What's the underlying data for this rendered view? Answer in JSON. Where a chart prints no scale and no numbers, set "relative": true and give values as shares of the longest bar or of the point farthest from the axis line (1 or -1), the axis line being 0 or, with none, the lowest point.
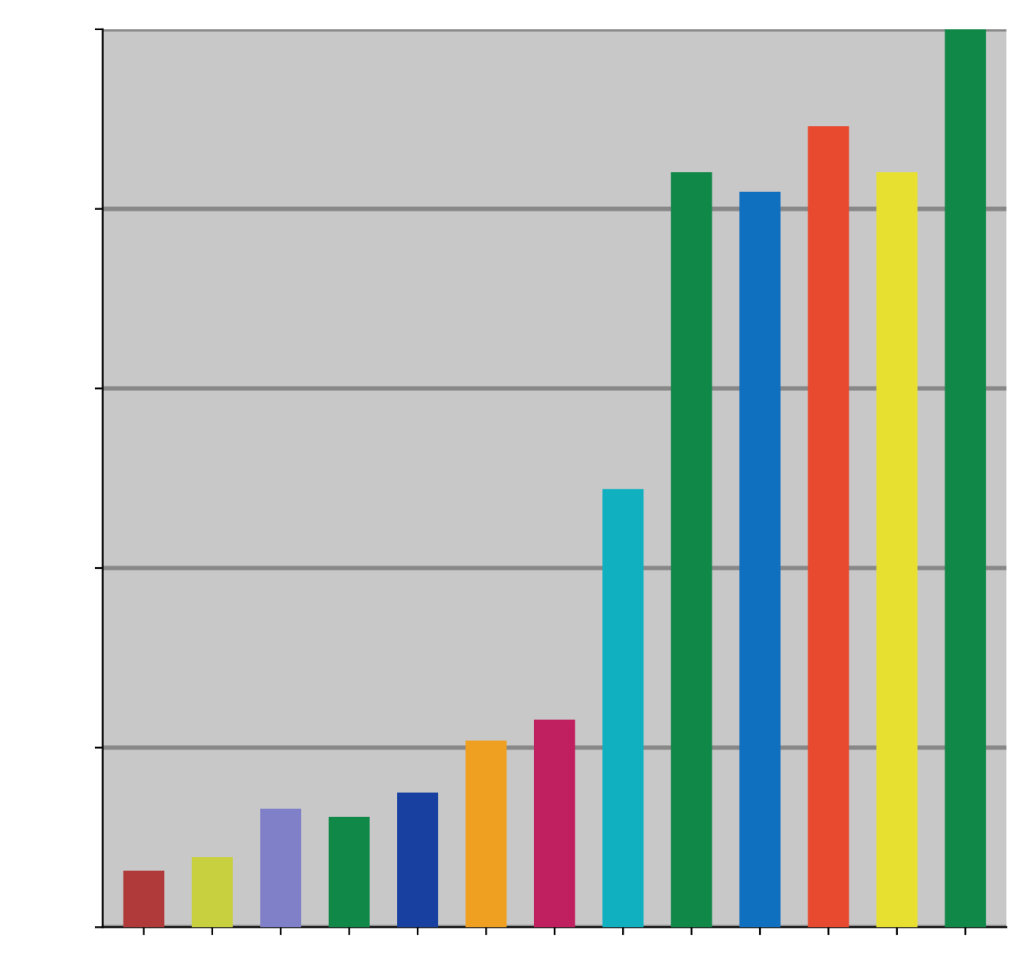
{
  "chart_data": {
    "type": "bar",
    "relative": true,
    "grid": "y",
    "categories": [
      null,
      null,
      null,
      null,
      null,
      null,
      null,
      null,
      null,
      null,
      null,
      null,
      null
    ],
    "values": [
      0.063,
      0.078,
      0.132,
      0.123,
      0.15,
      0.208,
      0.231,
      0.488,
      0.841,
      0.819,
      0.892,
      0.841,
      1
    ],
    "colors": [
      "#b03a3a",
      "#c8d040",
      "#8080c8",
      "#108848",
      "#1840a0",
      "#f0a020",
      "#c02060",
      "#10b0c0",
      "#108848",
      "#1070c0",
      "#e84a30",
      "#e8e030",
      "#108848"
    ]
  }
}
